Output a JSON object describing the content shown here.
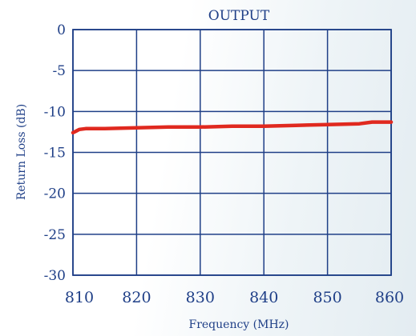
{
  "colors": {
    "grid": "#1f3f87",
    "text": "#1f3f87",
    "series": "#e0291f"
  },
  "chart_data": {
    "type": "line",
    "title": "OUTPUT",
    "xlabel": "Frequency (MHz)",
    "ylabel": "Return Loss (dB)",
    "xlim": [
      810,
      860
    ],
    "ylim": [
      -30,
      0
    ],
    "xticks": [
      810,
      820,
      830,
      840,
      850,
      860
    ],
    "xtick_labels": [
      "810",
      "820",
      "830",
      "840",
      "850",
      "860"
    ],
    "yticks": [
      0,
      -5,
      -10,
      -15,
      -20,
      -25,
      -30
    ],
    "ytick_labels": [
      "0",
      "-5",
      "-10",
      "-15",
      "-20",
      "-25",
      "-30"
    ],
    "grid": true,
    "series": [
      {
        "color": "#e0291f",
        "x": [
          810,
          810.5,
          811,
          812,
          815,
          820,
          825,
          830,
          835,
          840,
          845,
          850,
          855,
          857,
          860
        ],
        "y": [
          -12.6,
          -12.4,
          -12.2,
          -12.1,
          -12.1,
          -12.0,
          -11.9,
          -11.9,
          -11.8,
          -11.8,
          -11.7,
          -11.6,
          -11.5,
          -11.3,
          -11.3
        ]
      }
    ]
  }
}
